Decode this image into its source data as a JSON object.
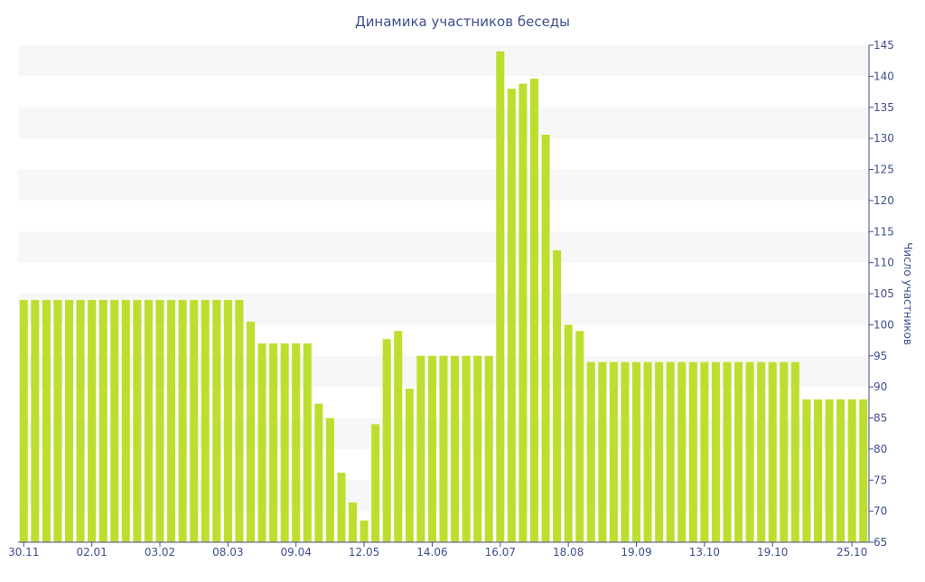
{
  "chart_data": {
    "type": "bar",
    "title": "Динамика участников беседы",
    "xlabel": "",
    "ylabel": "Число участников",
    "ylim": [
      65,
      145
    ],
    "y_ticks": [
      65,
      70,
      75,
      80,
      85,
      90,
      95,
      100,
      105,
      110,
      115,
      120,
      125,
      130,
      135,
      140,
      145
    ],
    "x_tick_labels": [
      "30.11",
      "02.01",
      "03.02",
      "08.03",
      "09.04",
      "12.05",
      "14.06",
      "16.07",
      "18.08",
      "19.09",
      "13.10",
      "19.10",
      "25.10"
    ],
    "x_tick_bar_index": [
      0,
      6,
      12,
      18,
      24,
      30,
      36,
      42,
      48,
      54,
      60,
      66,
      73
    ],
    "grid": "alternating horizontal bands",
    "axis_position": "right",
    "bar_color": "#bcdf2f",
    "band_color": "#f7f7f7",
    "text_color": "#3e4f8f",
    "values": [
      104,
      104,
      104,
      104,
      104,
      104,
      104,
      104,
      104,
      104,
      104,
      104,
      104,
      104,
      104,
      104,
      104,
      104,
      104,
      104,
      100.5,
      97,
      97,
      97,
      97,
      97,
      87.3,
      85,
      76.2,
      71.4,
      68.5,
      84,
      97.7,
      99,
      89.7,
      95,
      95,
      95,
      95,
      95,
      95,
      95,
      144,
      138,
      138.8,
      139.6,
      130.6,
      112,
      100,
      99,
      94,
      94,
      94,
      94,
      94,
      94,
      94,
      94,
      94,
      94,
      94,
      94,
      94,
      94,
      94,
      94,
      94,
      94,
      94,
      88,
      88,
      88,
      88,
      88,
      88
    ]
  }
}
